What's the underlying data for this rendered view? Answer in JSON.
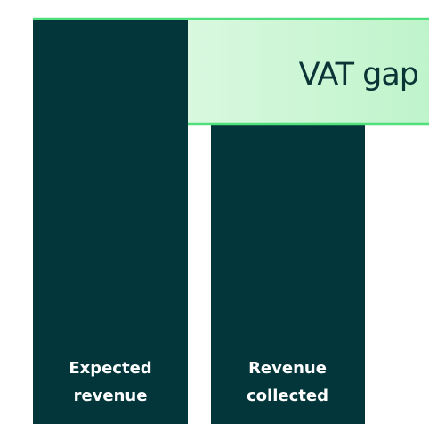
{
  "gap": {
    "label": "VAT gap"
  },
  "bars": [
    {
      "label": [
        "Expected",
        "revenue"
      ]
    },
    {
      "label": [
        "Revenue",
        "collected"
      ]
    }
  ]
}
